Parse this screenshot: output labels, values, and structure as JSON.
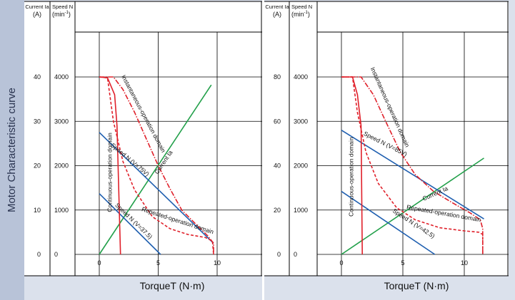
{
  "sidebar": {
    "label": "Motor Characteristic curve"
  },
  "colors": {
    "speed": "#1f5fb0",
    "current": "#22a04a",
    "limit": "#e0202a",
    "frame": "#000000",
    "panel": "#dbe1ec",
    "sidebar": "#b8c3d8"
  },
  "chart_data": [
    {
      "type": "line",
      "axes": {
        "current_label": "Current Ia",
        "current_unit": "(A)",
        "speed_label": "Speed N",
        "speed_unit_base": "(min",
        "speed_unit_sup": "-1",
        "speed_unit_close": ")",
        "xlabel": "TorqueT (N·m)"
      },
      "x_ticks": [
        "0",
        "5",
        "10"
      ],
      "x_tick_values": [
        0,
        5,
        10
      ],
      "xlim": [
        0,
        15
      ],
      "speed_ticks": [
        "0",
        "1000",
        "2000",
        "3000",
        "4000"
      ],
      "speed_tick_values": [
        0,
        1000,
        2000,
        3000,
        4000
      ],
      "current_ticks": [
        "0",
        "10",
        "20",
        "30",
        "40"
      ],
      "ylim_speed": [
        0,
        4000
      ],
      "series": [
        {
          "name": "Current Ia",
          "kind": "current",
          "points": [
            [
              0,
              0
            ],
            [
              9.5,
              3820
            ]
          ]
        },
        {
          "name": "Speed N (V=75V)",
          "kind": "speed",
          "points": [
            [
              0,
              2750
            ],
            [
              9.7,
              250
            ]
          ]
        },
        {
          "name": "Speed N (V=37.5)",
          "kind": "speed",
          "points": [
            [
              0,
              1370
            ],
            [
              5.2,
              0
            ]
          ]
        },
        {
          "name": "Continuous-operation domain",
          "kind": "limit-solid",
          "points": [
            [
              0,
              4000
            ],
            [
              0.7,
              3980
            ],
            [
              1.3,
              3600
            ],
            [
              1.5,
              2900
            ],
            [
              1.8,
              0
            ]
          ]
        },
        {
          "name": "Instantaneous-operation domain",
          "kind": "limit-dashdot",
          "points": [
            [
              0,
              4000
            ],
            [
              1.2,
              4000
            ],
            [
              2,
              3720
            ],
            [
              3,
              3200
            ],
            [
              4,
              2600
            ],
            [
              5,
              2000
            ],
            [
              6,
              1480
            ],
            [
              7,
              1000
            ],
            [
              8.2,
              680
            ],
            [
              9.2,
              420
            ],
            [
              9.7,
              250
            ],
            [
              9.7,
              0
            ]
          ]
        },
        {
          "name": "Repeated-operation domain",
          "kind": "limit-dashed",
          "points": [
            [
              0,
              4000
            ],
            [
              0.7,
              3980
            ],
            [
              1.2,
              3000
            ],
            [
              2,
              2100
            ],
            [
              3,
              1450
            ],
            [
              4.5,
              850
            ],
            [
              6,
              580
            ],
            [
              7.5,
              450
            ],
            [
              9,
              380
            ],
            [
              9.6,
              300
            ],
            [
              9.7,
              0
            ]
          ]
        }
      ],
      "labels": [
        {
          "text": "Current Ia",
          "x": 5.6,
          "y": 2050,
          "rot": -56,
          "kind": "current"
        },
        {
          "text": "Speed N (V=75V)",
          "x": 2.5,
          "y": 2100,
          "rot": 40,
          "kind": "speed"
        },
        {
          "text": "Speed N (V=37.5)",
          "x": 2.8,
          "y": 720,
          "rot": 44,
          "kind": "speed"
        },
        {
          "text": "Continuous-operation domain",
          "x": 1.05,
          "y": 1850,
          "rot": -90,
          "kind": "limit"
        },
        {
          "text": "Instantaneous-operation domain",
          "x": 3.6,
          "y": 3150,
          "rot": 62,
          "kind": "limit"
        },
        {
          "text": "Repeated-operation domain",
          "x": 6.6,
          "y": 720,
          "rot": 18,
          "kind": "limit"
        }
      ]
    },
    {
      "type": "line",
      "axes": {
        "current_label": "Current Ia",
        "current_unit": "(A)",
        "speed_label": "Speed N",
        "speed_unit_base": "(min",
        "speed_unit_sup": "-1",
        "speed_unit_close": ")",
        "xlabel": "TorqueT (N·m)"
      },
      "x_ticks": [
        "0",
        "5",
        "10"
      ],
      "x_tick_values": [
        0,
        5,
        10
      ],
      "xlim": [
        0,
        15
      ],
      "speed_ticks": [
        "0",
        "1000",
        "2000",
        "3000",
        "4000"
      ],
      "speed_tick_values": [
        0,
        1000,
        2000,
        3000,
        4000
      ],
      "current_ticks": [
        "0",
        "20",
        "40",
        "60",
        "80"
      ],
      "ylim_speed": [
        0,
        4000
      ],
      "series": [
        {
          "name": "Current Ia",
          "kind": "current",
          "points": [
            [
              0,
              0
            ],
            [
              11.6,
              2170
            ]
          ]
        },
        {
          "name": "Speed N (V=85V)",
          "kind": "speed",
          "points": [
            [
              0,
              2800
            ],
            [
              11.6,
              800
            ]
          ]
        },
        {
          "name": "Speed N (V=42.5)",
          "kind": "speed",
          "points": [
            [
              0,
              1420
            ],
            [
              7.6,
              0
            ]
          ]
        },
        {
          "name": "Continuous-operation domain",
          "kind": "limit-solid",
          "points": [
            [
              0,
              4000
            ],
            [
              0.9,
              4000
            ],
            [
              1.3,
              3600
            ],
            [
              1.6,
              2900
            ],
            [
              1.7,
              0
            ]
          ]
        },
        {
          "name": "Instantaneous-operation domain",
          "kind": "limit-dashdot",
          "points": [
            [
              0,
              4000
            ],
            [
              1.6,
              4000
            ],
            [
              2.6,
              3600
            ],
            [
              3.6,
              3000
            ],
            [
              4.8,
              2300
            ],
            [
              6,
              1800
            ],
            [
              7.5,
              1420
            ],
            [
              9,
              1170
            ],
            [
              10.5,
              930
            ],
            [
              11.3,
              780
            ],
            [
              11.5,
              580
            ],
            [
              11.5,
              0
            ]
          ]
        },
        {
          "name": "Repeated-operation domain",
          "kind": "limit-dashed",
          "points": [
            [
              0,
              4000
            ],
            [
              0.9,
              4000
            ],
            [
              1.3,
              3200
            ],
            [
              2,
              2300
            ],
            [
              3,
              1600
            ],
            [
              4.5,
              1050
            ],
            [
              6,
              780
            ],
            [
              8,
              600
            ],
            [
              10,
              530
            ],
            [
              11.2,
              500
            ],
            [
              11.5,
              450
            ],
            [
              11.5,
              0
            ]
          ]
        }
      ],
      "labels": [
        {
          "text": "Current Ia",
          "x": 7.7,
          "y": 1330,
          "rot": -24,
          "kind": "current"
        },
        {
          "text": "Speed N (V=85V)",
          "x": 3.5,
          "y": 2450,
          "rot": 27,
          "kind": "speed"
        },
        {
          "text": "Speed N (V=42.5)",
          "x": 5.8,
          "y": 660,
          "rot": 33,
          "kind": "speed"
        },
        {
          "text": "Continuous-operation domain",
          "x": 0.95,
          "y": 1750,
          "rot": -90,
          "kind": "limit"
        },
        {
          "text": "Instantaneous-operation domain",
          "x": 3.8,
          "y": 3300,
          "rot": 66,
          "kind": "limit"
        },
        {
          "text": "Repeated-operation domain",
          "x": 8.3,
          "y": 880,
          "rot": 10,
          "kind": "limit"
        }
      ]
    }
  ]
}
